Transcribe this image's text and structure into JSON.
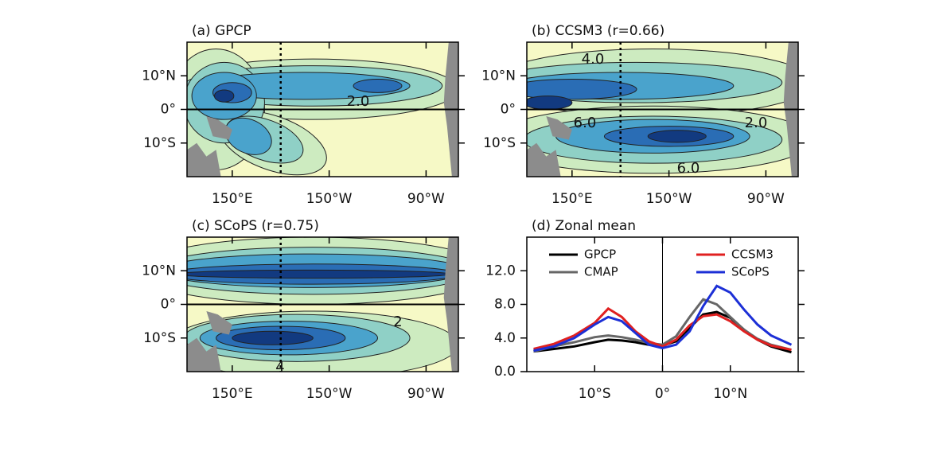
{
  "chart_data": [
    {
      "type": "map",
      "title": "(a) GPCP",
      "xlim": [
        122,
        290
      ],
      "ylim": [
        -20,
        20
      ],
      "xticks": [
        {
          "value": 150,
          "label": "150°E"
        },
        {
          "value": 210,
          "label": "150°W"
        },
        {
          "value": 270,
          "label": "90°W"
        }
      ],
      "yticks": [
        {
          "value": 10,
          "label": "10°N"
        },
        {
          "value": 0,
          "label": "0°"
        },
        {
          "value": -10,
          "label": "10°S"
        }
      ],
      "contour_labels": [
        "2.0"
      ]
    },
    {
      "type": "map",
      "title": "(b) CCSM3 (r=0.66)",
      "xlim": [
        122,
        290
      ],
      "ylim": [
        -20,
        20
      ],
      "xticks": [
        {
          "value": 150,
          "label": "150°E"
        },
        {
          "value": 210,
          "label": "150°W"
        },
        {
          "value": 270,
          "label": "90°W"
        }
      ],
      "yticks": [
        {
          "value": 10,
          "label": "10°N"
        },
        {
          "value": 0,
          "label": "0°"
        },
        {
          "value": -10,
          "label": "10°S"
        }
      ],
      "contour_labels": [
        "4.0",
        "6.0",
        "2.0",
        "6.0"
      ]
    },
    {
      "type": "map",
      "title": "(c) SCoPS (r=0.75)",
      "xlim": [
        122,
        290
      ],
      "ylim": [
        -20,
        20
      ],
      "xticks": [
        {
          "value": 150,
          "label": "150°E"
        },
        {
          "value": 210,
          "label": "150°W"
        },
        {
          "value": 270,
          "label": "90°W"
        }
      ],
      "yticks": [
        {
          "value": 10,
          "label": "10°N"
        },
        {
          "value": 0,
          "label": "0°"
        },
        {
          "value": -10,
          "label": "10°S"
        }
      ],
      "contour_labels": [
        "2",
        "4"
      ]
    },
    {
      "type": "line",
      "title": "(d) Zonal mean",
      "xlim": [
        -20,
        20
      ],
      "ylim": [
        0,
        16
      ],
      "xticks": [
        {
          "value": -10,
          "label": "10°S"
        },
        {
          "value": 0,
          "label": "0°"
        },
        {
          "value": 10,
          "label": "10°N"
        }
      ],
      "yticks": [
        {
          "value": 0,
          "label": "0.0"
        },
        {
          "value": 4,
          "label": "4.0"
        },
        {
          "value": 8,
          "label": "8.0"
        },
        {
          "value": 12,
          "label": "12.0"
        }
      ],
      "x": [
        -19,
        -16,
        -13,
        -10,
        -8,
        -6,
        -4,
        -2,
        0,
        2,
        4,
        6,
        8,
        10,
        12,
        14,
        16,
        19
      ],
      "series": [
        {
          "name": "GPCP",
          "color": "#000000",
          "values": [
            2.4,
            2.7,
            3.0,
            3.5,
            3.8,
            3.7,
            3.5,
            3.2,
            3.1,
            3.6,
            5.2,
            6.8,
            7.1,
            6.4,
            5.0,
            3.8,
            3.0,
            2.3
          ]
        },
        {
          "name": "CMAP",
          "color": "#666666",
          "values": [
            2.4,
            3.0,
            3.5,
            4.1,
            4.3,
            4.1,
            3.8,
            3.4,
            3.2,
            4.2,
            6.5,
            8.6,
            8.0,
            6.5,
            5.0,
            3.9,
            3.2,
            2.6
          ]
        },
        {
          "name": "CCSM3",
          "color": "#e02020",
          "values": [
            2.7,
            3.3,
            4.3,
            5.8,
            7.5,
            6.5,
            4.8,
            3.6,
            3.0,
            3.8,
            5.5,
            6.6,
            6.8,
            6.0,
            4.8,
            3.8,
            3.1,
            2.6
          ]
        },
        {
          "name": "SCoPS",
          "color": "#1c2fd6",
          "values": [
            2.5,
            3.0,
            4.0,
            5.6,
            6.5,
            6.0,
            4.6,
            3.2,
            2.8,
            3.2,
            4.8,
            7.8,
            10.2,
            9.4,
            7.4,
            5.6,
            4.3,
            3.2
          ]
        }
      ]
    }
  ]
}
